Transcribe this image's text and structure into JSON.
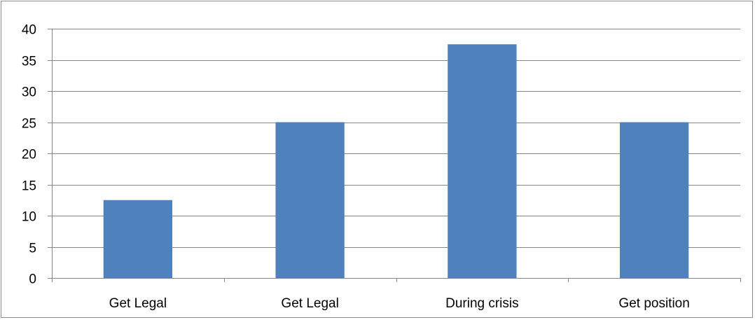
{
  "chart_data": {
    "type": "bar",
    "categories": [
      "Get Legal",
      "Get Legal",
      "During crisis",
      "Get position"
    ],
    "values": [
      12.5,
      25,
      37.5,
      25
    ],
    "ylim": [
      0,
      40
    ],
    "yticks": [
      0,
      5,
      10,
      15,
      20,
      25,
      30,
      35,
      40
    ],
    "grid": true,
    "legend": "none",
    "title": "",
    "xlabel": "",
    "ylabel": "",
    "colors": {
      "bar": "#4f81bd",
      "grid": "#868686",
      "axis": "#868686",
      "border": "#8c8c8c"
    }
  }
}
